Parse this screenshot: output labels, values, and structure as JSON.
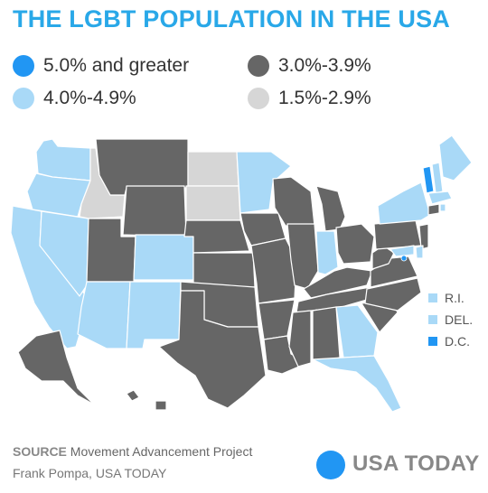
{
  "title": "THE LGBT POPULATION IN THE USA",
  "legend": [
    {
      "label": "5.0% and greater",
      "color": "#2196f3"
    },
    {
      "label": "3.0%-3.9%",
      "color": "#666666"
    },
    {
      "label": "4.0%-4.9%",
      "color": "#a9d9f7"
    },
    {
      "label": "1.5%-2.9%",
      "color": "#d6d6d6"
    }
  ],
  "small_states": [
    {
      "label": "R.I.",
      "color": "#a9d9f7"
    },
    {
      "label": "DEL.",
      "color": "#a9d9f7"
    },
    {
      "label": "D.C.",
      "color": "#2196f3"
    }
  ],
  "colors": {
    "title": "#29a8e8",
    "border": "#ffffff"
  },
  "footer": {
    "source_label": "SOURCE",
    "source_text": "Movement Advancement Project",
    "credit": "Frank Pompa, USA TODAY",
    "brand": "USA TODAY",
    "brand_color": "#2196f3"
  },
  "map": {
    "states": [
      {
        "name": "WA",
        "category": "4.0%-4.9%"
      },
      {
        "name": "OR",
        "category": "4.0%-4.9%"
      },
      {
        "name": "CA",
        "category": "4.0%-4.9%"
      },
      {
        "name": "NV",
        "category": "4.0%-4.9%"
      },
      {
        "name": "ID",
        "category": "1.5%-2.9%"
      },
      {
        "name": "MT",
        "category": "3.0%-3.9%"
      },
      {
        "name": "WY",
        "category": "3.0%-3.9%"
      },
      {
        "name": "UT",
        "category": "3.0%-3.9%"
      },
      {
        "name": "AZ",
        "category": "4.0%-4.9%"
      },
      {
        "name": "CO",
        "category": "4.0%-4.9%"
      },
      {
        "name": "NM",
        "category": "4.0%-4.9%"
      },
      {
        "name": "ND",
        "category": "1.5%-2.9%"
      },
      {
        "name": "SD",
        "category": "1.5%-2.9%"
      },
      {
        "name": "NE",
        "category": "3.0%-3.9%"
      },
      {
        "name": "KS",
        "category": "3.0%-3.9%"
      },
      {
        "name": "OK",
        "category": "3.0%-3.9%"
      },
      {
        "name": "TX",
        "category": "3.0%-3.9%"
      },
      {
        "name": "MN",
        "category": "4.0%-4.9%"
      },
      {
        "name": "IA",
        "category": "3.0%-3.9%"
      },
      {
        "name": "MO",
        "category": "3.0%-3.9%"
      },
      {
        "name": "AR",
        "category": "3.0%-3.9%"
      },
      {
        "name": "LA",
        "category": "3.0%-3.9%"
      },
      {
        "name": "WI",
        "category": "3.0%-3.9%"
      },
      {
        "name": "IL",
        "category": "3.0%-3.9%"
      },
      {
        "name": "MI",
        "category": "3.0%-3.9%"
      },
      {
        "name": "IN",
        "category": "4.0%-4.9%"
      },
      {
        "name": "OH",
        "category": "3.0%-3.9%"
      },
      {
        "name": "KY",
        "category": "3.0%-3.9%"
      },
      {
        "name": "TN",
        "category": "3.0%-3.9%"
      },
      {
        "name": "MS",
        "category": "3.0%-3.9%"
      },
      {
        "name": "AL",
        "category": "3.0%-3.9%"
      },
      {
        "name": "GA",
        "category": "4.0%-4.9%"
      },
      {
        "name": "FL",
        "category": "4.0%-4.9%"
      },
      {
        "name": "SC",
        "category": "3.0%-3.9%"
      },
      {
        "name": "NC",
        "category": "3.0%-3.9%"
      },
      {
        "name": "VA",
        "category": "3.0%-3.9%"
      },
      {
        "name": "WV",
        "category": "3.0%-3.9%"
      },
      {
        "name": "PA",
        "category": "3.0%-3.9%"
      },
      {
        "name": "NY",
        "category": "4.0%-4.9%"
      },
      {
        "name": "VT",
        "category": "5.0% and greater"
      },
      {
        "name": "NH",
        "category": "4.0%-4.9%"
      },
      {
        "name": "ME",
        "category": "4.0%-4.9%"
      },
      {
        "name": "MA",
        "category": "4.0%-4.9%"
      },
      {
        "name": "CT",
        "category": "3.0%-3.9%"
      },
      {
        "name": "RI",
        "category": "4.0%-4.9%"
      },
      {
        "name": "NJ",
        "category": "3.0%-3.9%"
      },
      {
        "name": "DE",
        "category": "4.0%-4.9%"
      },
      {
        "name": "MD",
        "category": "4.0%-4.9%"
      },
      {
        "name": "DC",
        "category": "5.0% and greater"
      },
      {
        "name": "AK",
        "category": "3.0%-3.9%"
      },
      {
        "name": "HI",
        "category": "3.0%-3.9%"
      }
    ]
  }
}
